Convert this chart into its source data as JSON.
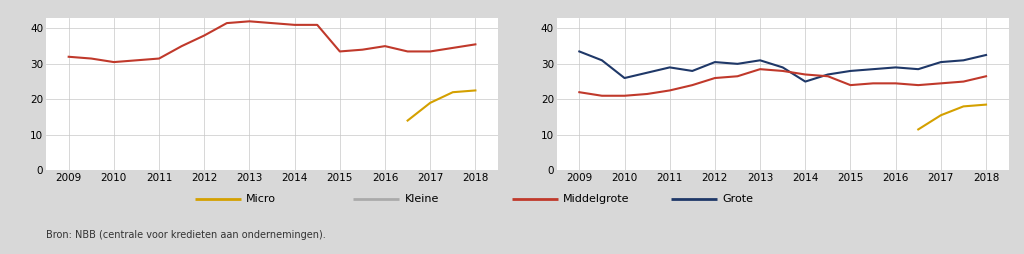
{
  "years": [
    2009,
    2009.5,
    2010,
    2010.5,
    2011,
    2011.5,
    2012,
    2012.5,
    2013,
    2013.5,
    2014,
    2014.5,
    2015,
    2015.5,
    2016,
    2016.5,
    2017,
    2017.5,
    2018
  ],
  "left": {
    "middelgrote": [
      32,
      31.5,
      30.5,
      31,
      31.5,
      35,
      38,
      41.5,
      42,
      41.5,
      41,
      41,
      33.5,
      34,
      35,
      33.5,
      33.5,
      34.5,
      35.5
    ],
    "micro": [
      null,
      null,
      null,
      null,
      null,
      null,
      null,
      null,
      null,
      null,
      null,
      null,
      null,
      null,
      null,
      14,
      19,
      22,
      22.5
    ]
  },
  "right": {
    "grote": [
      33.5,
      31,
      26,
      27.5,
      29,
      28,
      30.5,
      30,
      31,
      29,
      25,
      27,
      28,
      28.5,
      29,
      28.5,
      30.5,
      31,
      32.5
    ],
    "middelgrote": [
      22,
      21,
      21,
      21.5,
      22.5,
      24,
      26,
      26.5,
      28.5,
      28,
      27,
      26.5,
      24,
      24.5,
      24.5,
      24,
      24.5,
      25,
      26.5
    ],
    "micro": [
      null,
      null,
      null,
      null,
      null,
      null,
      null,
      null,
      null,
      null,
      null,
      null,
      null,
      null,
      null,
      11.5,
      15.5,
      18,
      18.5
    ]
  },
  "xlim": [
    2008.5,
    2018.5
  ],
  "ylim": [
    0,
    43
  ],
  "yticks": [
    0,
    10,
    20,
    30,
    40
  ],
  "xticks": [
    2009,
    2010,
    2011,
    2012,
    2013,
    2014,
    2015,
    2016,
    2017,
    2018
  ],
  "color_micro": "#D4A000",
  "color_kleine": "#AAAAAA",
  "color_middelgrote": "#C0392B",
  "color_grote": "#1F3868",
  "background_color": "#D8D8D8",
  "plot_bg_color": "#FFFFFF",
  "legend_labels": [
    "Micro",
    "Kleine",
    "Middelgrote",
    "Grote"
  ],
  "footnote": "Bron: NBB (centrale voor kredieten aan ondernemingen).",
  "linewidth": 1.5
}
